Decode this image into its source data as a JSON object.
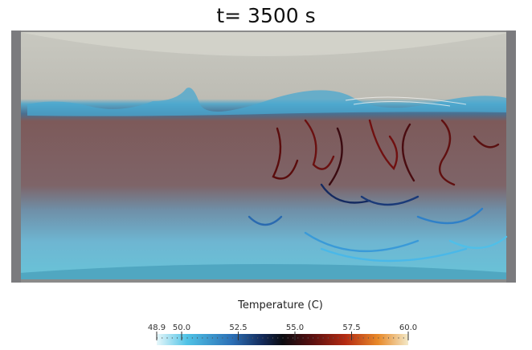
{
  "title": "t= 3500 s",
  "colorbar": {
    "label": "Temperature (C)",
    "lim": [
      48.9,
      60.0
    ],
    "ticks": [
      48.9,
      {
        "value": 50.0,
        "label": "50.0"
      },
      {
        "value": 52.5,
        "label": "52.5"
      },
      {
        "value": 55.0,
        "label": "55.0"
      },
      {
        "value": 57.5,
        "label": "57.5"
      },
      {
        "value": 60.0,
        "label": "60.0"
      }
    ]
  }
}
